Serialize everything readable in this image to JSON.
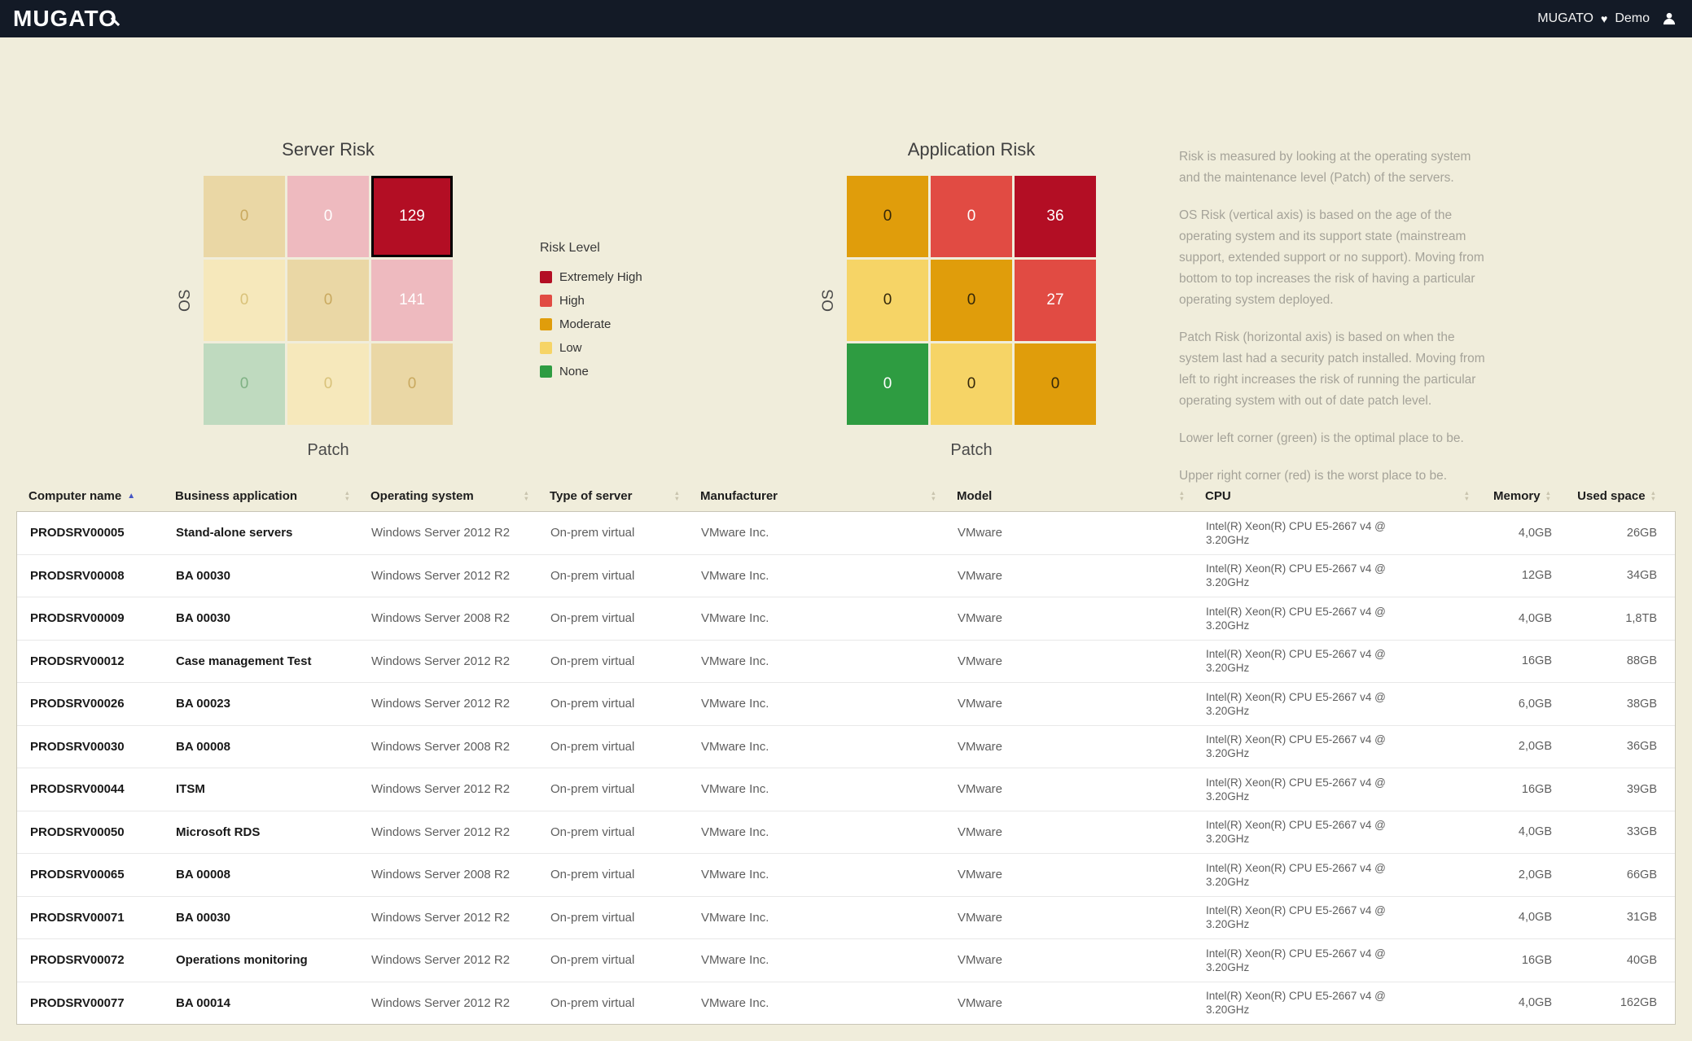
{
  "topbar": {
    "logo": "MUGATO",
    "account_name": "MUGATO",
    "account_env": "Demo"
  },
  "icons": {
    "heart": "♥",
    "sort_up": "▲",
    "sort_down": "▼"
  },
  "risk_legend": {
    "title": "Risk Level",
    "items": [
      {
        "label": "Extremely High",
        "color": "#b30e24"
      },
      {
        "label": "High",
        "color": "#e14b43"
      },
      {
        "label": "Moderate",
        "color": "#e09d0b"
      },
      {
        "label": "Low",
        "color": "#f6d466"
      },
      {
        "label": "None",
        "color": "#2e9c41"
      }
    ]
  },
  "chart_data": [
    {
      "type": "heatmap",
      "title": "Server Risk",
      "xlabel": "Patch",
      "ylabel": "OS",
      "rows": [
        [
          {
            "value": 0,
            "bg": "#ead7a5",
            "fg": "#c9a95f"
          },
          {
            "value": 0,
            "bg": "#eebabf",
            "fg": "#ffffff"
          },
          {
            "value": 129,
            "bg": "#b30e24",
            "fg": "#ffffff",
            "selected": true
          }
        ],
        [
          {
            "value": 0,
            "bg": "#f6e8bb",
            "fg": "#d9c27a"
          },
          {
            "value": 0,
            "bg": "#ead7a5",
            "fg": "#c9a95f"
          },
          {
            "value": 141,
            "bg": "#eebabf",
            "fg": "#ffffff"
          }
        ],
        [
          {
            "value": 0,
            "bg": "#bfdabf",
            "fg": "#7fb184"
          },
          {
            "value": 0,
            "bg": "#f6e8bb",
            "fg": "#d9c27a"
          },
          {
            "value": 0,
            "bg": "#ead7a5",
            "fg": "#c9a95f"
          }
        ]
      ]
    },
    {
      "type": "heatmap",
      "title": "Application Risk",
      "xlabel": "Patch",
      "ylabel": "OS",
      "rows": [
        [
          {
            "value": 0,
            "bg": "#e09d0b",
            "fg": "#33270a"
          },
          {
            "value": 0,
            "bg": "#e14b43",
            "fg": "#ffffff"
          },
          {
            "value": 36,
            "bg": "#b30e24",
            "fg": "#ffffff"
          }
        ],
        [
          {
            "value": 0,
            "bg": "#f6d466",
            "fg": "#33270a"
          },
          {
            "value": 0,
            "bg": "#e09d0b",
            "fg": "#33270a"
          },
          {
            "value": 27,
            "bg": "#e14b43",
            "fg": "#ffffff"
          }
        ],
        [
          {
            "value": 0,
            "bg": "#2e9c41",
            "fg": "#ffffff"
          },
          {
            "value": 0,
            "bg": "#f6d466",
            "fg": "#33270a"
          },
          {
            "value": 0,
            "bg": "#e09d0b",
            "fg": "#33270a"
          }
        ]
      ]
    }
  ],
  "description": {
    "paragraphs": [
      "Risk is measured by looking at the operating system and the maintenance level (Patch) of the servers.",
      "OS Risk (vertical axis) is based on the age of the operating system and its support state (mainstream support, extended support or no support). Moving from bottom to top increases the risk of having a particular operating system deployed.",
      "Patch Risk (horizontal axis) is based on when the system last had a security patch installed. Moving from left to right increases the risk of running the particular operating system with out of date patch level.",
      "Lower left corner (green) is the optimal place to be.",
      "Upper right corner (red) is the worst place to be."
    ]
  },
  "table": {
    "columns": [
      {
        "label": "Computer name",
        "sorted": "asc"
      },
      {
        "label": "Business application"
      },
      {
        "label": "Operating system"
      },
      {
        "label": "Type of server"
      },
      {
        "label": "Manufacturer"
      },
      {
        "label": "Model"
      },
      {
        "label": "CPU"
      },
      {
        "label": "Memory",
        "align": "right"
      },
      {
        "label": "Used space",
        "align": "right"
      }
    ],
    "rows": [
      [
        "PRODSRV00005",
        "Stand-alone servers",
        "Windows Server 2012 R2",
        "On-prem virtual",
        "VMware Inc.",
        "VMware",
        "Intel(R) Xeon(R) CPU E5-2667 v4 @ 3.20GHz",
        "4,0GB",
        "26GB"
      ],
      [
        "PRODSRV00008",
        "BA 00030",
        "Windows Server 2012 R2",
        "On-prem virtual",
        "VMware Inc.",
        "VMware",
        "Intel(R) Xeon(R) CPU E5-2667 v4 @ 3.20GHz",
        "12GB",
        "34GB"
      ],
      [
        "PRODSRV00009",
        "BA 00030",
        "Windows Server 2008 R2",
        "On-prem virtual",
        "VMware Inc.",
        "VMware",
        "Intel(R) Xeon(R) CPU E5-2667 v4 @ 3.20GHz",
        "4,0GB",
        "1,8TB"
      ],
      [
        "PRODSRV00012",
        "Case management Test",
        "Windows Server 2012 R2",
        "On-prem virtual",
        "VMware Inc.",
        "VMware",
        "Intel(R) Xeon(R) CPU E5-2667 v4 @ 3.20GHz",
        "16GB",
        "88GB"
      ],
      [
        "PRODSRV00026",
        "BA 00023",
        "Windows Server 2012 R2",
        "On-prem virtual",
        "VMware Inc.",
        "VMware",
        "Intel(R) Xeon(R) CPU E5-2667 v4 @ 3.20GHz",
        "6,0GB",
        "38GB"
      ],
      [
        "PRODSRV00030",
        "BA 00008",
        "Windows Server 2008 R2",
        "On-prem virtual",
        "VMware Inc.",
        "VMware",
        "Intel(R) Xeon(R) CPU E5-2667 v4 @ 3.20GHz",
        "2,0GB",
        "36GB"
      ],
      [
        "PRODSRV00044",
        "ITSM",
        "Windows Server 2012 R2",
        "On-prem virtual",
        "VMware Inc.",
        "VMware",
        "Intel(R) Xeon(R) CPU E5-2667 v4 @ 3.20GHz",
        "16GB",
        "39GB"
      ],
      [
        "PRODSRV00050",
        "Microsoft RDS",
        "Windows Server 2012 R2",
        "On-prem virtual",
        "VMware Inc.",
        "VMware",
        "Intel(R) Xeon(R) CPU E5-2667 v4 @ 3.20GHz",
        "4,0GB",
        "33GB"
      ],
      [
        "PRODSRV00065",
        "BA 00008",
        "Windows Server 2008 R2",
        "On-prem virtual",
        "VMware Inc.",
        "VMware",
        "Intel(R) Xeon(R) CPU E5-2667 v4 @ 3.20GHz",
        "2,0GB",
        "66GB"
      ],
      [
        "PRODSRV00071",
        "BA 00030",
        "Windows Server 2012 R2",
        "On-prem virtual",
        "VMware Inc.",
        "VMware",
        "Intel(R) Xeon(R) CPU E5-2667 v4 @ 3.20GHz",
        "4,0GB",
        "31GB"
      ],
      [
        "PRODSRV00072",
        "Operations monitoring",
        "Windows Server 2012 R2",
        "On-prem virtual",
        "VMware Inc.",
        "VMware",
        "Intel(R) Xeon(R) CPU E5-2667 v4 @ 3.20GHz",
        "16GB",
        "40GB"
      ],
      [
        "PRODSRV00077",
        "BA 00014",
        "Windows Server 2012 R2",
        "On-prem virtual",
        "VMware Inc.",
        "VMware",
        "Intel(R) Xeon(R) CPU E5-2667 v4 @ 3.20GHz",
        "4,0GB",
        "162GB"
      ]
    ]
  }
}
